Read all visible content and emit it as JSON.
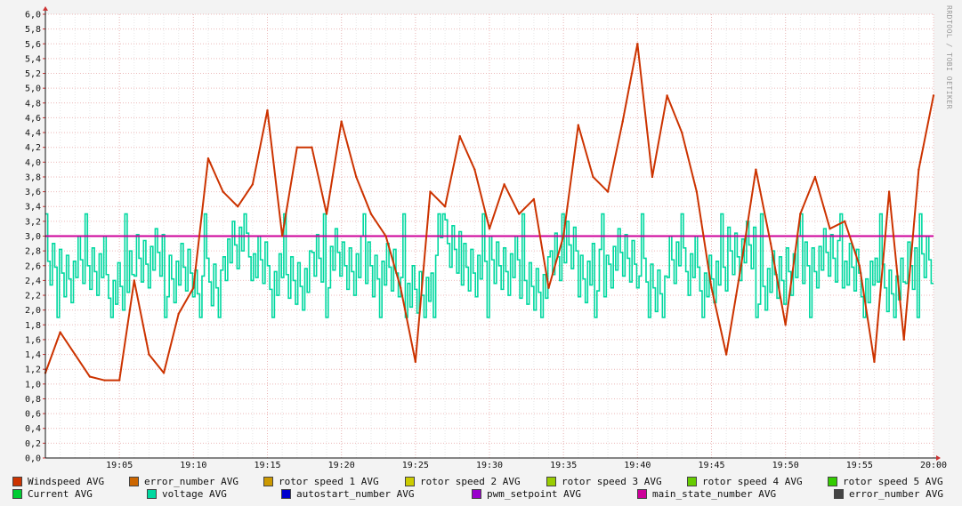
{
  "credit": "RRDTOOL / TOBI OETIKER",
  "chart_data": {
    "type": "line",
    "title": "",
    "xlabel": "",
    "ylabel": "",
    "ylim": [
      0,
      6
    ],
    "xlim": [
      "19:00",
      "20:00"
    ],
    "yticks": [
      "0,0",
      "0,2",
      "0,4",
      "0,6",
      "0,8",
      "1,0",
      "1,2",
      "1,4",
      "1,6",
      "1,8",
      "2,0",
      "2,2",
      "2,4",
      "2,6",
      "2,8",
      "3,0",
      "3,2",
      "3,4",
      "3,6",
      "3,8",
      "4,0",
      "4,2",
      "4,4",
      "4,6",
      "4,8",
      "5,0",
      "5,2",
      "5,4",
      "5,6",
      "5,8",
      "6,0"
    ],
    "xticks": [
      "19:05",
      "19:10",
      "19:15",
      "19:20",
      "19:25",
      "19:30",
      "19:35",
      "19:40",
      "19:45",
      "19:50",
      "19:55",
      "20:00"
    ],
    "grid": true,
    "legend_position": "bottom",
    "series": [
      {
        "name": "Windspeed AVG",
        "color": "#cc3300",
        "style": "line",
        "x": [
          "19:00",
          "19:01",
          "19:02",
          "19:03",
          "19:04",
          "19:05",
          "19:06",
          "19:07",
          "19:08",
          "19:09",
          "19:10",
          "19:11",
          "19:12",
          "19:13",
          "19:14",
          "19:15",
          "19:16",
          "19:17",
          "19:18",
          "19:19",
          "19:20",
          "19:21",
          "19:22",
          "19:23",
          "19:24",
          "19:25",
          "19:26",
          "19:27",
          "19:28",
          "19:29",
          "19:30",
          "19:31",
          "19:32",
          "19:33",
          "19:34",
          "19:35",
          "19:36",
          "19:37",
          "19:38",
          "19:39",
          "19:40",
          "19:41",
          "19:42",
          "19:43",
          "19:44",
          "19:45",
          "19:46",
          "19:47",
          "19:48",
          "19:49",
          "19:50",
          "19:51",
          "19:52",
          "19:53",
          "19:54",
          "19:55",
          "19:56",
          "19:57",
          "19:58",
          "19:59",
          "20:00"
        ],
        "values": [
          1.15,
          1.7,
          1.4,
          1.1,
          1.05,
          1.05,
          2.4,
          1.4,
          1.15,
          1.95,
          2.3,
          4.05,
          3.6,
          3.4,
          3.7,
          4.7,
          3.0,
          4.2,
          4.2,
          3.3,
          4.55,
          3.8,
          3.3,
          3.0,
          2.3,
          1.3,
          3.6,
          3.4,
          4.35,
          3.9,
          3.1,
          3.7,
          3.3,
          3.5,
          2.3,
          3.0,
          4.5,
          3.8,
          3.6,
          4.55,
          5.6,
          3.8,
          4.9,
          4.4,
          3.6,
          2.3,
          1.4,
          2.6,
          3.9,
          2.9,
          1.8,
          3.3,
          3.8,
          3.1,
          3.2,
          2.6,
          1.3,
          3.6,
          1.6,
          3.9,
          4.9
        ]
      },
      {
        "name": "error_number AVG",
        "color": "#cc6600",
        "style": "none"
      },
      {
        "name": "rotor speed 1 AVG",
        "color": "#cc9900",
        "style": "none"
      },
      {
        "name": "rotor speed 2 AVG",
        "color": "#cccc00",
        "style": "none"
      },
      {
        "name": "rotor speed 3 AVG",
        "color": "#99cc00",
        "style": "none"
      },
      {
        "name": "rotor speed 4 AVG",
        "color": "#66cc00",
        "style": "none"
      },
      {
        "name": "rotor speed 5 AVG",
        "color": "#33cc00",
        "style": "none"
      },
      {
        "name": "Current AVG",
        "color": "#00cc33",
        "style": "none"
      },
      {
        "name": "voltage AVG",
        "color": "#00d8a0",
        "style": "step",
        "range": [
          1.9,
          3.3
        ],
        "levels": [
          2.5,
          2.6,
          2.4,
          2.7,
          2.5,
          2.3,
          2.8,
          2.6,
          2.4,
          2.7,
          2.6,
          2.5,
          2.2,
          2.9,
          2.5,
          2.6,
          2.4,
          2.8,
          2.5,
          2.7,
          2.3,
          2.6,
          2.5,
          2.8,
          2.4,
          2.6,
          2.7,
          2.5,
          2.3,
          2.6
        ]
      },
      {
        "name": "autostart_number AVG",
        "color": "#0000cc",
        "style": "none"
      },
      {
        "name": "pwm_setpoint AVG",
        "color": "#9900cc",
        "style": "none"
      },
      {
        "name": "main_state_number AVG",
        "color": "#cc0099",
        "style": "hline",
        "x": [
          "19:00",
          "20:00"
        ],
        "values": [
          3.0,
          3.0
        ]
      },
      {
        "name": "error_number AVG",
        "color": "#444444",
        "style": "none"
      }
    ]
  }
}
